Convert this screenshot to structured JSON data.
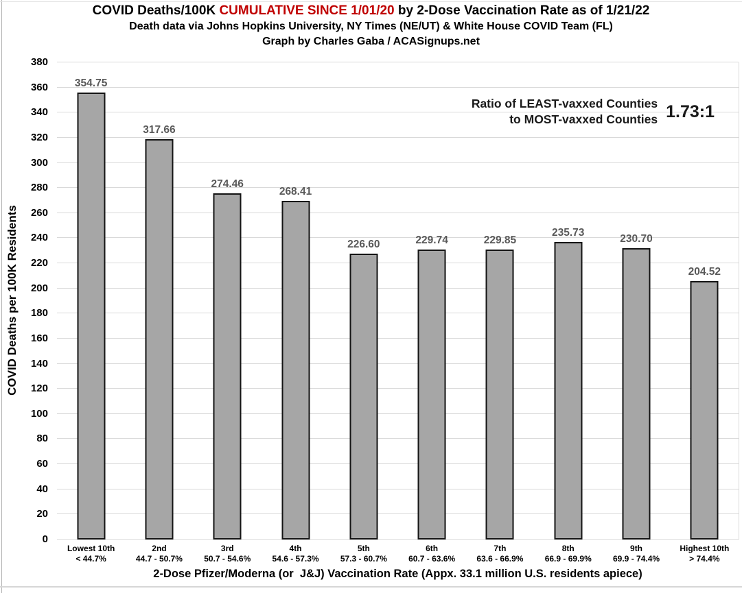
{
  "title": {
    "line1_prefix": "COVID Deaths/100K ",
    "line1_highlight": "CUMULATIVE SINCE 1/01/20",
    "line1_suffix": " by 2-Dose Vaccination Rate as of 1/21/22",
    "line2": "Death data via Johns Hopkins University, NY Times (NE/UT) & White House COVID Team (FL)",
    "line3": "Graph by Charles Gaba / ACASignups.net"
  },
  "annotation": {
    "label_line1": "Ratio of LEAST-vaxxed Counties",
    "label_line2": "to MOST-vaxxed Counties",
    "value": "1.73:1"
  },
  "chart_data": {
    "type": "bar",
    "title": "COVID Deaths/100K CUMULATIVE SINCE 1/01/20 by 2-Dose Vaccination Rate as of 1/21/22",
    "subtitle": "Death data via Johns Hopkins University, NY Times (NE/UT) & White House COVID Team (FL)",
    "credit": "Graph by Charles Gaba / ACASignups.net",
    "categories": [
      {
        "label": "Lowest 10th",
        "range": "< 44.7%"
      },
      {
        "label": "2nd",
        "range": "44.7 - 50.7%"
      },
      {
        "label": "3rd",
        "range": "50.7 - 54.6%"
      },
      {
        "label": "4th",
        "range": "54.6 - 57.3%"
      },
      {
        "label": "5th",
        "range": "57.3 - 60.7%"
      },
      {
        "label": "6th",
        "range": "60.7 - 63.6%"
      },
      {
        "label": "7th",
        "range": "63.6 - 66.9%"
      },
      {
        "label": "8th",
        "range": "66.9 - 69.9%"
      },
      {
        "label": "9th",
        "range": "69.9 - 74.4%"
      },
      {
        "label": "Highest 10th",
        "range": "> 74.4%"
      }
    ],
    "values": [
      354.75,
      317.66,
      274.46,
      268.41,
      226.6,
      229.74,
      229.85,
      235.73,
      230.7,
      204.52
    ],
    "xlabel": "2-Dose Pfizer/Moderna (or  J&J) Vaccination Rate (Appx. 33.1 million U.S. residents apiece)",
    "ylabel": "COVID Deaths per 100K Residents",
    "ylim": [
      0,
      380
    ],
    "ytick_step": 20,
    "grid": "horizontal",
    "legend": "none",
    "ratio_least_to_most_vaxxed": "1.73:1",
    "colors": {
      "bar_fill": "#a6a6a6",
      "bar_border": "#141414",
      "gridline": "#d9d9d9",
      "value_label": "#595959",
      "title_highlight": "#c00000",
      "text": "#000000"
    }
  }
}
